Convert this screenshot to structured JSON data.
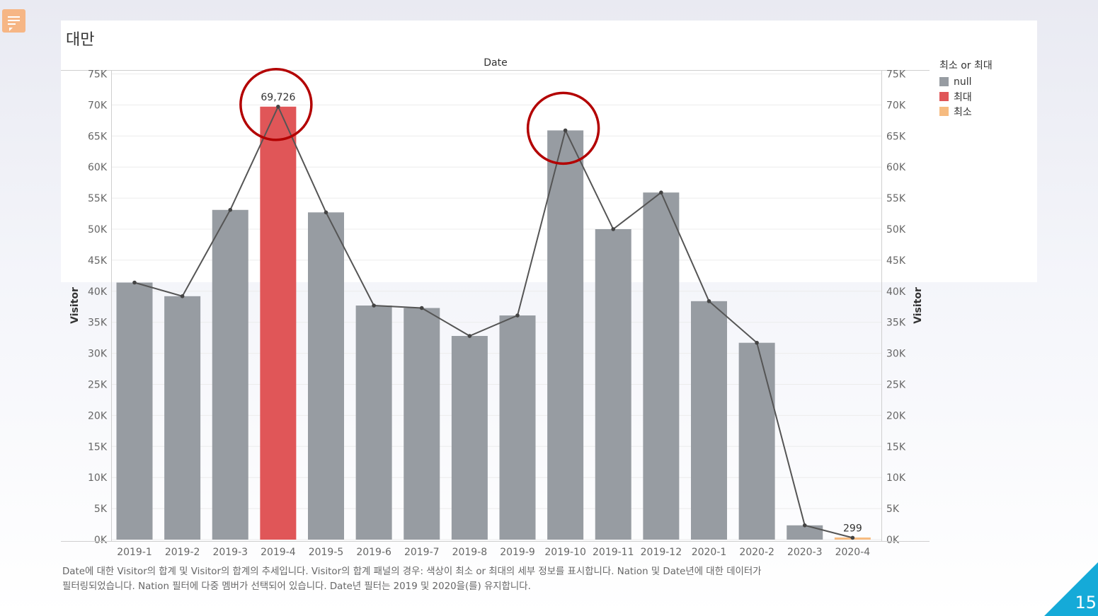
{
  "slide": {
    "title": "대만",
    "page_number": "15",
    "icon": "speech-bubble-icon",
    "accent_color": "#15aad8",
    "footnote_line1": "Date에 대한 Visitor의 합계 및 Visitor의 합계의 추세입니다. Visitor의 합계 패널의 경우: 색상이 최소 or 최대의 세부 정보를 표시합니다. Nation 및 Date년에 대한 데이터가",
    "footnote_line2": "필터링되었습니다. Nation 필터에 다중 멤버가 선택되어 있습니다. Date년 필터는 2019 및 2020을(를) 유지합니다."
  },
  "chart_data": {
    "type": "bar",
    "header": "Date",
    "ylabel_left": "Visitor",
    "ylabel_right": "Visitor",
    "ylim": [
      0,
      75000
    ],
    "yticks": [
      {
        "value": 0,
        "label": "0K"
      },
      {
        "value": 5000,
        "label": "5K"
      },
      {
        "value": 10000,
        "label": "10K"
      },
      {
        "value": 15000,
        "label": "15K"
      },
      {
        "value": 20000,
        "label": "20K"
      },
      {
        "value": 25000,
        "label": "25K"
      },
      {
        "value": 30000,
        "label": "30K"
      },
      {
        "value": 35000,
        "label": "35K"
      },
      {
        "value": 40000,
        "label": "40K"
      },
      {
        "value": 45000,
        "label": "45K"
      },
      {
        "value": 50000,
        "label": "50K"
      },
      {
        "value": 55000,
        "label": "55K"
      },
      {
        "value": 60000,
        "label": "60K"
      },
      {
        "value": 65000,
        "label": "65K"
      },
      {
        "value": 70000,
        "label": "70K"
      },
      {
        "value": 75000,
        "label": "75K"
      }
    ],
    "categories": [
      "2019-1",
      "2019-2",
      "2019-3",
      "2019-4",
      "2019-5",
      "2019-6",
      "2019-7",
      "2019-8",
      "2019-9",
      "2019-10",
      "2019-11",
      "2019-12",
      "2020-1",
      "2020-2",
      "2020-3",
      "2020-4"
    ],
    "values": [
      41400,
      39200,
      53100,
      69726,
      52700,
      37700,
      37300,
      32800,
      36100,
      65900,
      50000,
      55900,
      38400,
      31700,
      2300,
      299
    ],
    "groups": [
      "null",
      "null",
      "null",
      "최대",
      "null",
      "null",
      "null",
      "null",
      "null",
      "null",
      "null",
      "null",
      "null",
      "null",
      "null",
      "최소"
    ],
    "line": {
      "name": "Visitor",
      "values": [
        41400,
        39200,
        53100,
        69726,
        52700,
        37700,
        37300,
        32800,
        36100,
        65900,
        50000,
        55900,
        38400,
        31700,
        2300,
        299
      ],
      "color": "#555555"
    },
    "data_labels": [
      {
        "index": 3,
        "text": "69,726"
      },
      {
        "index": 15,
        "text": "299"
      }
    ],
    "highlight_circles": [
      {
        "index": 3
      },
      {
        "index": 9
      }
    ],
    "highlight_color": "#b30000",
    "legend": {
      "title": "최소 or 최대",
      "position": "right",
      "items": [
        {
          "label": "null",
          "color": "#979ca2"
        },
        {
          "label": "최대",
          "color": "#e05658"
        },
        {
          "label": "최소",
          "color": "#f6bb80"
        }
      ]
    },
    "grid": true,
    "dual_axis": true
  }
}
